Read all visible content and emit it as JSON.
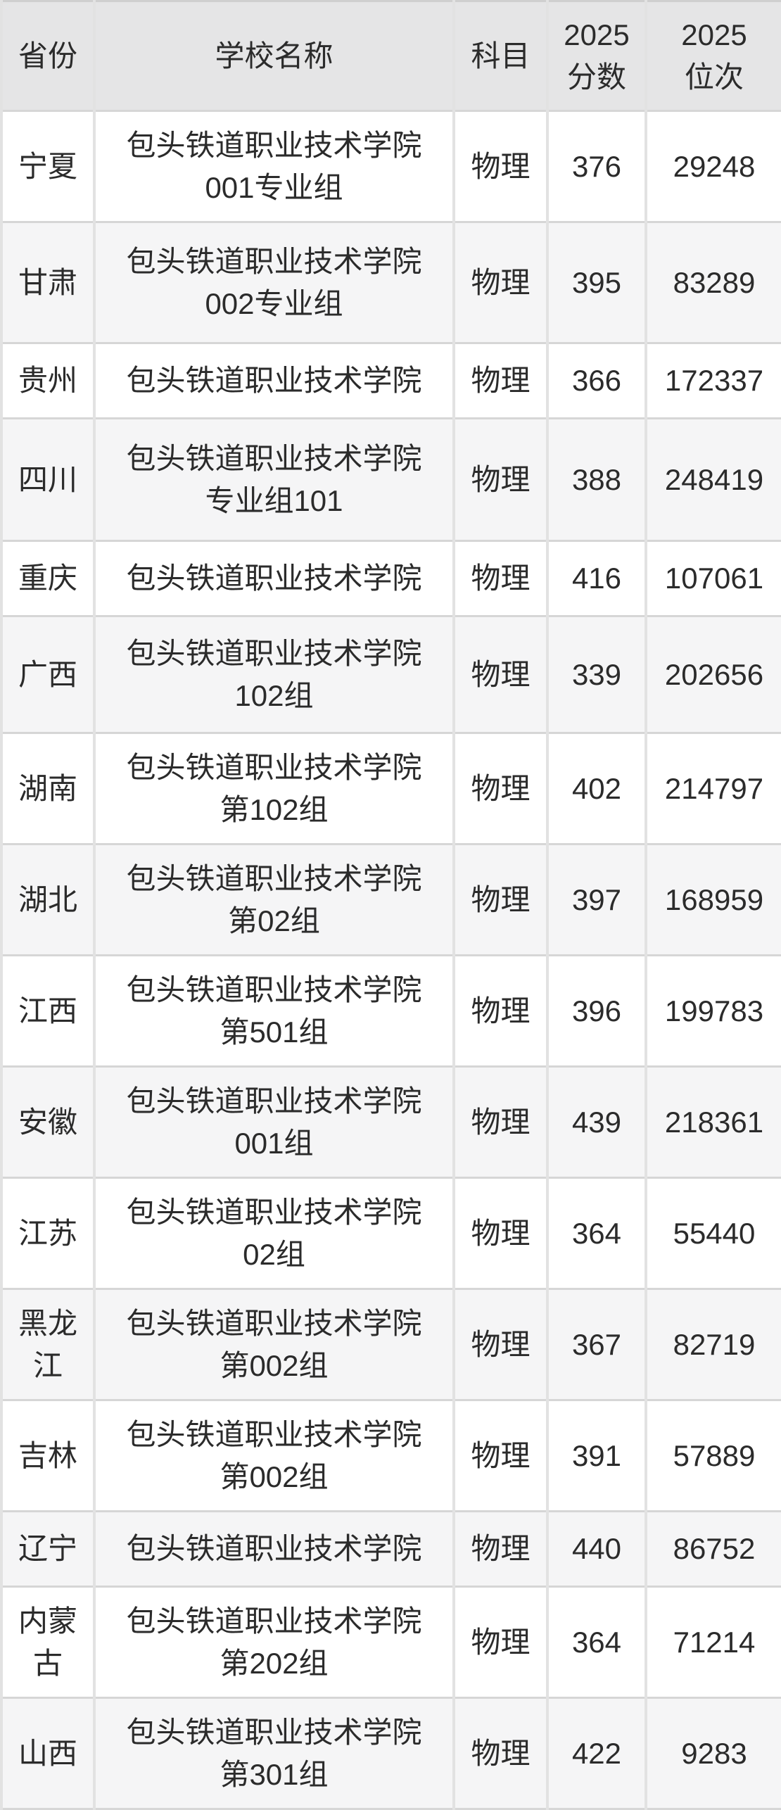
{
  "theme": {
    "header-bg": "#e5e5e6",
    "row-bg": "#ffffff",
    "row-alt-bg": "#f5f5f6",
    "border-h": "#d6d6d6",
    "border-v": "#e2e2e2",
    "text": "#2b2b2b"
  },
  "table": {
    "header": {
      "province": {
        "line1": "省份",
        "line2": ""
      },
      "school": {
        "line1": "学校名称",
        "line2": ""
      },
      "subject": {
        "line1": "科目",
        "line2": ""
      },
      "score": {
        "line1": "2025",
        "line2": "分数"
      },
      "rank": {
        "line1": "2025",
        "line2": "位次"
      }
    },
    "rows": [
      {
        "province": "宁夏",
        "school_line1": "包头铁道职业技术学院",
        "school_line2": "001专业组",
        "subject": "物理",
        "score": "376",
        "rank": "29248"
      },
      {
        "province": "甘肃",
        "school_line1": "包头铁道职业技术学院",
        "school_line2": "002专业组",
        "subject": "物理",
        "score": "395",
        "rank": "83289"
      },
      {
        "province": "贵州",
        "school_line1": "包头铁道职业技术学院",
        "school_line2": "",
        "subject": "物理",
        "score": "366",
        "rank": "172337"
      },
      {
        "province": "四川",
        "school_line1": "包头铁道职业技术学院",
        "school_line2": "专业组101",
        "subject": "物理",
        "score": "388",
        "rank": "248419"
      },
      {
        "province": "重庆",
        "school_line1": "包头铁道职业技术学院",
        "school_line2": "",
        "subject": "物理",
        "score": "416",
        "rank": "107061"
      },
      {
        "province": "广西",
        "school_line1": "包头铁道职业技术学院",
        "school_line2": "102组",
        "subject": "物理",
        "score": "339",
        "rank": "202656"
      },
      {
        "province": "湖南",
        "school_line1": "包头铁道职业技术学院",
        "school_line2": "第102组",
        "subject": "物理",
        "score": "402",
        "rank": "214797"
      },
      {
        "province": "湖北",
        "school_line1": "包头铁道职业技术学院",
        "school_line2": "第02组",
        "subject": "物理",
        "score": "397",
        "rank": "168959"
      },
      {
        "province": "江西",
        "school_line1": "包头铁道职业技术学院",
        "school_line2": "第501组",
        "subject": "物理",
        "score": "396",
        "rank": "199783"
      },
      {
        "province": "安徽",
        "school_line1": "包头铁道职业技术学院",
        "school_line2": "001组",
        "subject": "物理",
        "score": "439",
        "rank": "218361"
      },
      {
        "province": "江苏",
        "school_line1": "包头铁道职业技术学院",
        "school_line2": "02组",
        "subject": "物理",
        "score": "364",
        "rank": "55440"
      },
      {
        "province": "黑龙江",
        "school_line1": "包头铁道职业技术学院",
        "school_line2": "第002组",
        "subject": "物理",
        "score": "367",
        "rank": "82719"
      },
      {
        "province": "吉林",
        "school_line1": "包头铁道职业技术学院",
        "school_line2": "第002组",
        "subject": "物理",
        "score": "391",
        "rank": "57889"
      },
      {
        "province": "辽宁",
        "school_line1": "包头铁道职业技术学院",
        "school_line2": "",
        "subject": "物理",
        "score": "440",
        "rank": "86752"
      },
      {
        "province": "内蒙古",
        "school_line1": "包头铁道职业技术学院",
        "school_line2": "第202组",
        "subject": "物理",
        "score": "364",
        "rank": "71214"
      },
      {
        "province": "山西",
        "school_line1": "包头铁道职业技术学院",
        "school_line2": "第301组",
        "subject": "物理",
        "score": "422",
        "rank": "9283"
      }
    ]
  }
}
